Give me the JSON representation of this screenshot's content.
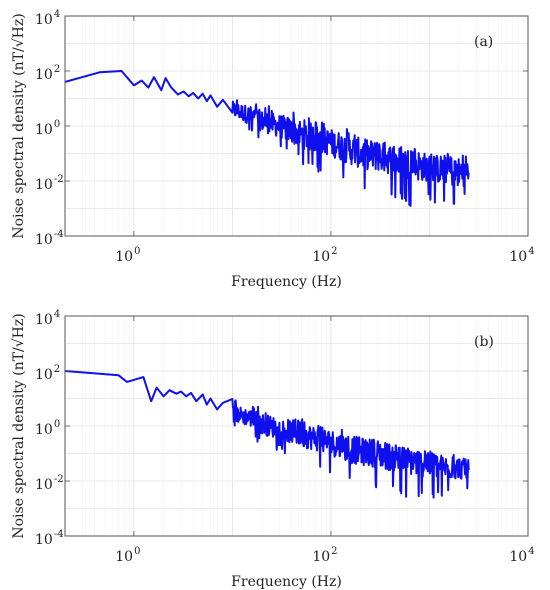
{
  "chart_data": [
    {
      "type": "line",
      "panel_label": "(a)",
      "xlabel": "Frequency (Hz)",
      "ylabel": "Noise spectral density (nT/√Hz)",
      "xscale": "log",
      "yscale": "log",
      "xlim": [
        0.2,
        10000
      ],
      "ylim": [
        0.0001,
        10000
      ],
      "x_ticks": [
        {
          "base": "10",
          "exp": "0"
        },
        {
          "base": "10",
          "exp": "2"
        },
        {
          "base": "10",
          "exp": "4"
        }
      ],
      "y_ticks": [
        {
          "base": "10",
          "exp": "-4"
        },
        {
          "base": "10",
          "exp": "-2"
        },
        {
          "base": "10",
          "exp": "0"
        },
        {
          "base": "10",
          "exp": "2"
        },
        {
          "base": "10",
          "exp": "4"
        }
      ],
      "grid": true,
      "color": "#1010ee",
      "series": [
        {
          "x": [
            0.2,
            0.45,
            0.75,
            1.0,
            1.2,
            1.4,
            1.6,
            1.9,
            2.1,
            2.4,
            2.8,
            3.2,
            3.6,
            4.0,
            4.5,
            5.0,
            5.5,
            6.0,
            7.0,
            8.0,
            10,
            15,
            20,
            30,
            50,
            70,
            100,
            150,
            200,
            300,
            500,
            700,
            1000,
            1500,
            2000,
            2500
          ],
          "y": [
            40,
            90,
            100,
            30,
            45,
            25,
            60,
            20,
            55,
            25,
            14,
            18,
            12,
            16,
            10,
            15,
            8,
            13,
            5,
            9,
            4,
            2.5,
            1.5,
            1.0,
            0.5,
            0.35,
            0.25,
            0.15,
            0.1,
            0.08,
            0.05,
            0.04,
            0.03,
            0.025,
            0.02,
            0.02
          ],
          "y_min": [
            40,
            90,
            100,
            30,
            45,
            25,
            60,
            20,
            55,
            25,
            14,
            18,
            12,
            16,
            10,
            15,
            8,
            13,
            5,
            9,
            1.0,
            0.5,
            0.25,
            0.15,
            0.04,
            0.02,
            0.02,
            0.008,
            0.005,
            0.003,
            0.002,
            0.001,
            0.002,
            0.001,
            0.001,
            0.003
          ],
          "y_max": [
            40,
            90,
            100,
            30,
            45,
            25,
            60,
            20,
            55,
            25,
            14,
            18,
            12,
            16,
            10,
            15,
            8,
            13,
            5,
            9,
            12,
            8,
            6,
            5,
            3,
            1.5,
            1.2,
            0.8,
            0.5,
            0.3,
            0.2,
            0.15,
            0.12,
            0.1,
            0.1,
            0.1
          ]
        }
      ]
    },
    {
      "type": "line",
      "panel_label": "(b)",
      "xlabel": "Frequency (Hz)",
      "ylabel": "Noise spectral density (nT/√Hz)",
      "xscale": "log",
      "yscale": "log",
      "xlim": [
        0.2,
        10000
      ],
      "ylim": [
        0.0001,
        10000
      ],
      "x_ticks": [
        {
          "base": "10",
          "exp": "0"
        },
        {
          "base": "10",
          "exp": "2"
        },
        {
          "base": "10",
          "exp": "4"
        }
      ],
      "y_ticks": [
        {
          "base": "10",
          "exp": "-4"
        },
        {
          "base": "10",
          "exp": "-2"
        },
        {
          "base": "10",
          "exp": "0"
        },
        {
          "base": "10",
          "exp": "2"
        },
        {
          "base": "10",
          "exp": "4"
        }
      ],
      "grid": true,
      "color": "#1010ee",
      "series": [
        {
          "x": [
            0.2,
            0.7,
            0.85,
            1.25,
            1.5,
            1.7,
            2.0,
            2.3,
            2.7,
            3.0,
            3.4,
            3.8,
            4.3,
            5.0,
            5.5,
            6.0,
            7.0,
            8.0,
            10,
            15,
            20,
            30,
            50,
            70,
            100,
            150,
            200,
            300,
            500,
            700,
            1000,
            1500,
            2000,
            2500
          ],
          "y": [
            100,
            70,
            40,
            60,
            8,
            25,
            12,
            20,
            15,
            18,
            12,
            16,
            8,
            14,
            6,
            10,
            4,
            7,
            3,
            2.0,
            1.2,
            0.8,
            0.5,
            0.35,
            0.25,
            0.15,
            0.12,
            0.1,
            0.06,
            0.05,
            0.04,
            0.03,
            0.03,
            0.025
          ],
          "y_min": [
            100,
            70,
            40,
            60,
            8,
            25,
            12,
            20,
            15,
            18,
            12,
            16,
            8,
            14,
            6,
            10,
            4,
            7,
            0.8,
            0.4,
            0.2,
            0.12,
            0.04,
            0.03,
            0.02,
            0.008,
            0.006,
            0.004,
            0.003,
            0.002,
            0.002,
            0.003,
            0.003,
            0.004
          ],
          "y_max": [
            100,
            70,
            40,
            60,
            8,
            25,
            12,
            20,
            15,
            18,
            12,
            16,
            8,
            14,
            6,
            10,
            4,
            7,
            10,
            6,
            5,
            3,
            2,
            1.2,
            1.0,
            0.6,
            0.4,
            0.3,
            0.2,
            0.15,
            0.12,
            0.1,
            0.09,
            0.08
          ]
        }
      ]
    }
  ]
}
